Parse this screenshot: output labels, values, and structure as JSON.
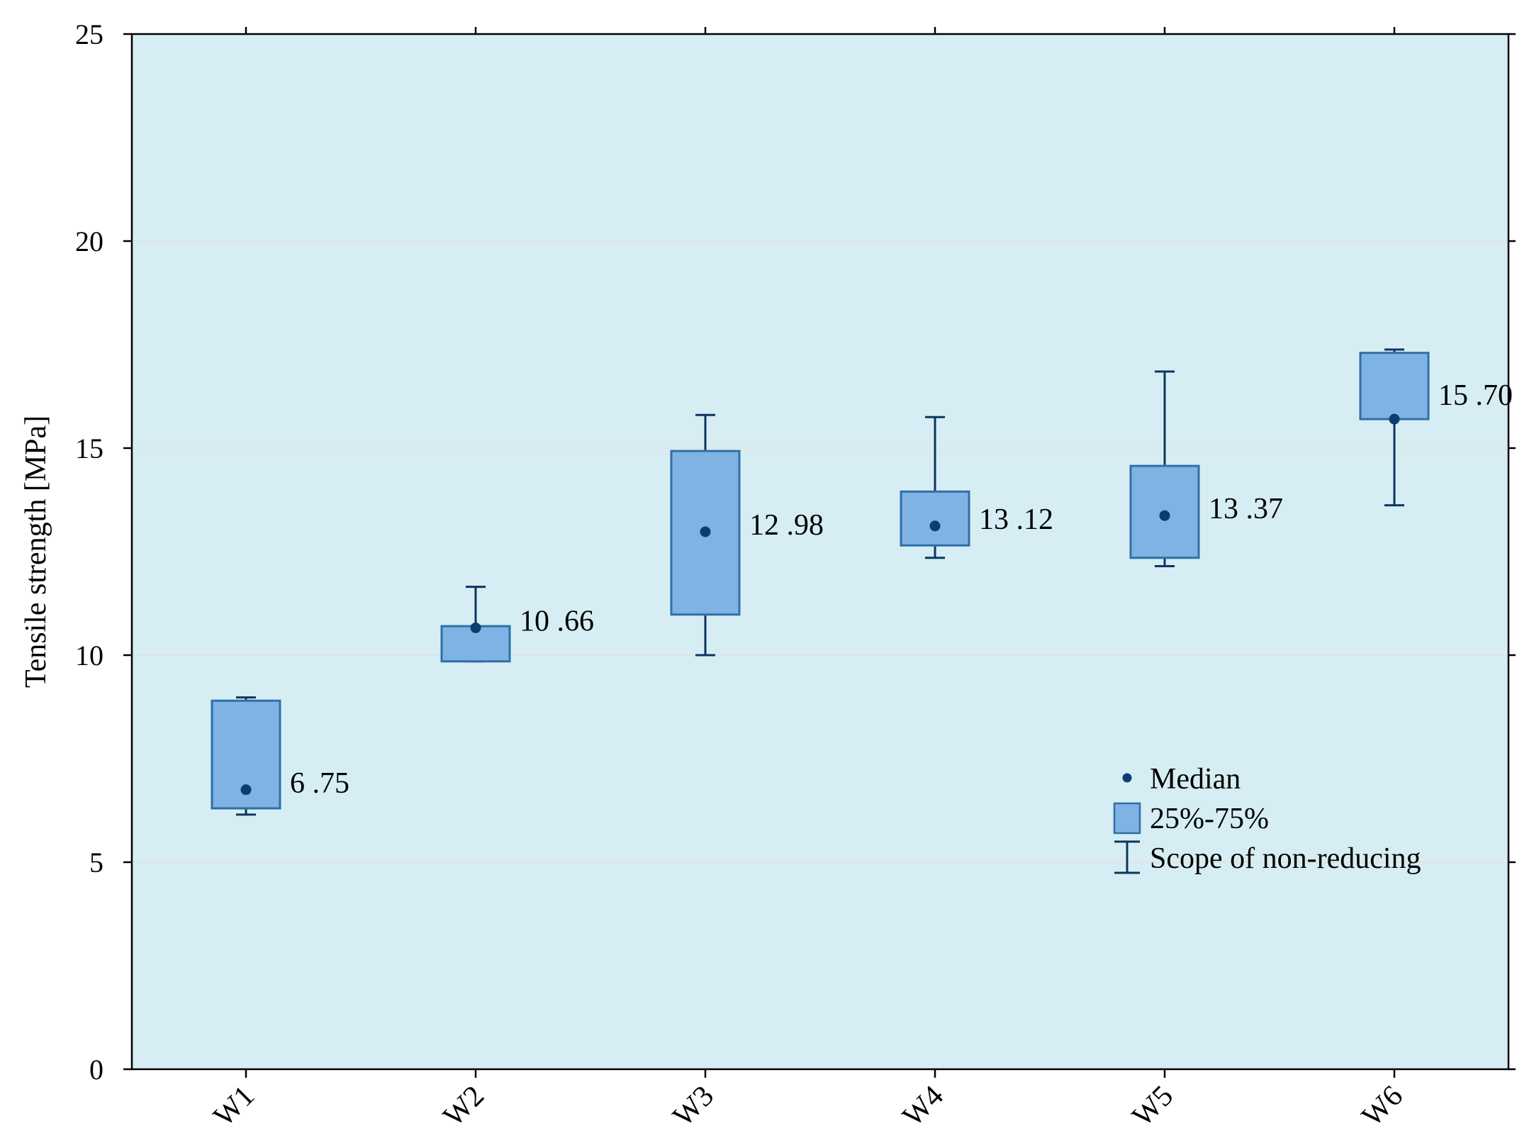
{
  "chart_data": {
    "type": "boxplot",
    "title": "",
    "xlabel": "",
    "ylabel": "Tensile strength [MPa]",
    "ylim": [
      0,
      25
    ],
    "yticks": [
      0,
      5,
      10,
      15,
      20,
      25
    ],
    "grid": "horizontal",
    "categories": [
      "W1",
      "W2",
      "W3",
      "W4",
      "W5",
      "W6"
    ],
    "boxes": [
      {
        "category": "W1",
        "median": 6.75,
        "q1": 6.3,
        "q3": 8.9,
        "min": 6.15,
        "max": 8.98,
        "label": "6 .75"
      },
      {
        "category": "W2",
        "median": 10.66,
        "q1": 9.85,
        "q3": 10.7,
        "min": 9.85,
        "max": 11.65,
        "label": "10 .66"
      },
      {
        "category": "W3",
        "median": 12.98,
        "q1": 10.98,
        "q3": 14.93,
        "min": 10.0,
        "max": 15.8,
        "label": "12 .98"
      },
      {
        "category": "W4",
        "median": 13.12,
        "q1": 12.65,
        "q3": 13.95,
        "min": 12.35,
        "max": 15.75,
        "label": "13 .12"
      },
      {
        "category": "W5",
        "median": 13.37,
        "q1": 12.35,
        "q3": 14.57,
        "min": 12.15,
        "max": 16.85,
        "label": "13 .37"
      },
      {
        "category": "W6",
        "median": 15.7,
        "q1": 15.7,
        "q3": 17.3,
        "min": 13.62,
        "max": 17.38,
        "label": "15 .70"
      }
    ],
    "legend": {
      "position": "lower-right",
      "items": [
        {
          "type": "median",
          "label": "Median"
        },
        {
          "type": "box",
          "label": "25%-75%"
        },
        {
          "type": "whisker",
          "label": "Scope of non-reducing"
        }
      ]
    }
  },
  "colors": {
    "plot_background": "#d6eef3",
    "box_fill": "#7fb3e3",
    "box_stroke": "#2f6fa8",
    "whisker": "#0d3560",
    "median": "#0d3d70",
    "gridline": "#e2e2e2",
    "axis": "#000000"
  }
}
